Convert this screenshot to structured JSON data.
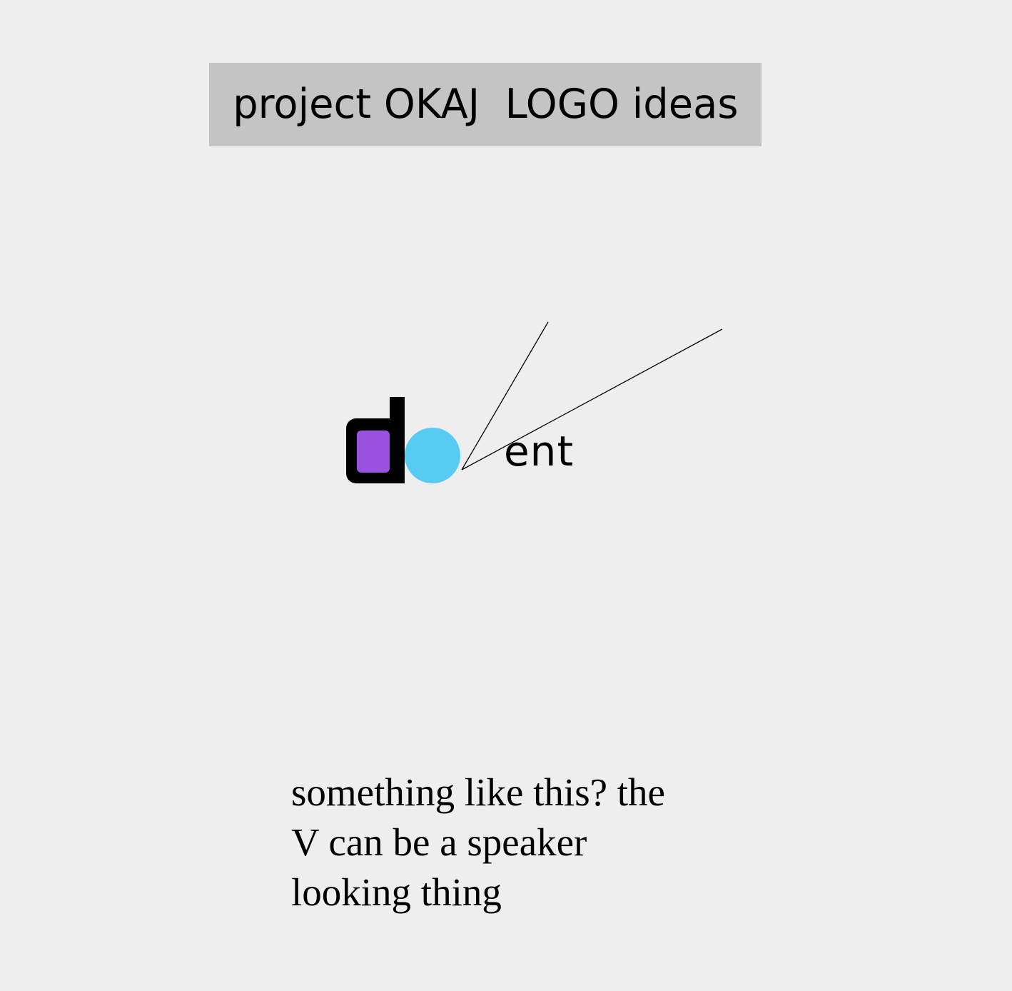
{
  "title": "project OKAJ  LOGO ideas",
  "logo": {
    "letter_d": "d",
    "suffix": "ent",
    "colors": {
      "d_stroke": "#000000",
      "d_fill": "#9b51e0",
      "circle": "#56ccf2",
      "lines": "#000000"
    }
  },
  "note": {
    "lines": [
      "something like this? the",
      "V can be a speaker",
      "looking thing"
    ]
  },
  "colors": {
    "background": "#eeeeee",
    "title_box": "#c4c4c4"
  }
}
